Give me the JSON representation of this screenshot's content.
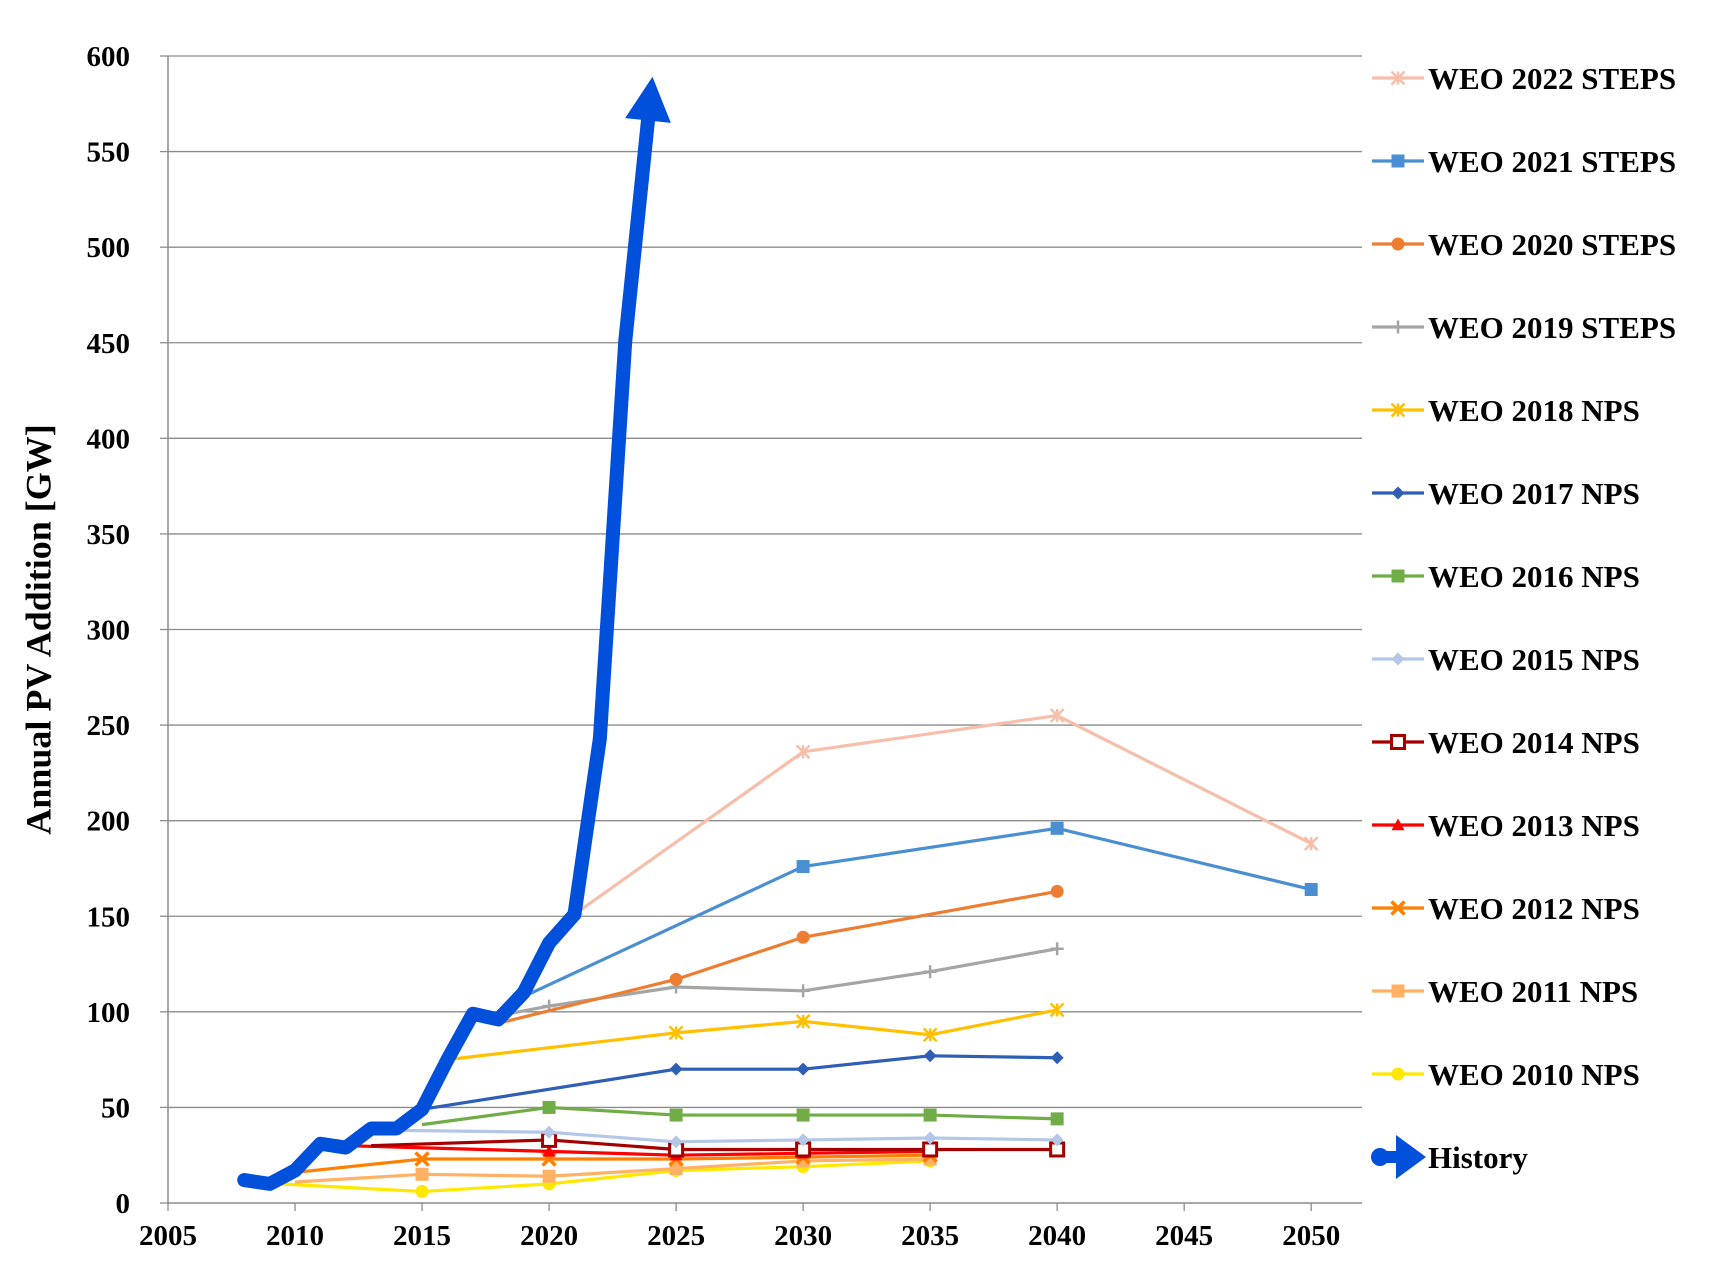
{
  "chart_data": {
    "type": "line",
    "ylabel": "Annual PV Addition [GW]",
    "xlabel": "",
    "xlim": [
      2005,
      2052
    ],
    "ylim": [
      0,
      600
    ],
    "x_ticks": [
      "2005",
      "2010",
      "2015",
      "2020",
      "2025",
      "2030",
      "2035",
      "2040",
      "2045",
      "2050"
    ],
    "y_ticks": [
      "0",
      "50",
      "100",
      "150",
      "200",
      "250",
      "300",
      "350",
      "400",
      "450",
      "500",
      "550",
      "600"
    ],
    "grid": "horizontal",
    "legend_position": "right",
    "history": {
      "name": "History",
      "color": "#0050DC",
      "x": [
        2008,
        2009,
        2010,
        2011,
        2012,
        2013,
        2014,
        2015,
        2016,
        2017,
        2018,
        2019,
        2020,
        2021,
        2022,
        2023,
        2024
      ],
      "y": [
        12,
        10,
        17,
        31,
        29,
        39,
        39,
        49,
        75,
        99,
        96,
        110,
        136,
        151,
        243,
        451,
        580
      ]
    },
    "series": [
      {
        "name": "WEO 2022 STEPS",
        "color": "#F7BFAA",
        "marker": "asterisk",
        "x": [
          2021,
          2030,
          2040,
          2050
        ],
        "y": [
          151,
          236,
          255,
          188
        ]
      },
      {
        "name": "WEO 2021 STEPS",
        "color": "#4A8FD2",
        "marker": "square",
        "x": [
          2019,
          2030,
          2040,
          2050
        ],
        "y": [
          108,
          176,
          196,
          164
        ]
      },
      {
        "name": "WEO 2020 STEPS",
        "color": "#ED7D31",
        "marker": "circle",
        "x": [
          2018,
          2025,
          2030,
          2040
        ],
        "y": [
          94,
          117,
          139,
          163
        ]
      },
      {
        "name": "WEO 2019 STEPS",
        "color": "#A5A5A5",
        "marker": "plus",
        "x": [
          2018,
          2020,
          2025,
          2030,
          2035,
          2040
        ],
        "y": [
          98,
          103,
          113,
          111,
          121,
          133
        ]
      },
      {
        "name": "WEO 2018 NPS",
        "color": "#FFC000",
        "marker": "asterisk",
        "x": [
          2016,
          2025,
          2030,
          2035,
          2040
        ],
        "y": [
          75,
          89,
          95,
          88,
          101
        ]
      },
      {
        "name": "WEO 2017 NPS",
        "color": "#2F5EB5",
        "marker": "diamond",
        "x": [
          2015,
          2025,
          2030,
          2035,
          2040
        ],
        "y": [
          49,
          70,
          70,
          77,
          76
        ]
      },
      {
        "name": "WEO 2016 NPS",
        "color": "#70AD47",
        "marker": "square",
        "x": [
          2015,
          2020,
          2025,
          2030,
          2035,
          2040
        ],
        "y": [
          41,
          50,
          46,
          46,
          46,
          44
        ]
      },
      {
        "name": "WEO 2015 NPS",
        "color": "#B4C7E7",
        "marker": "diamond",
        "x": [
          2014,
          2020,
          2025,
          2030,
          2035,
          2040
        ],
        "y": [
          38,
          37,
          32,
          33,
          34,
          33
        ]
      },
      {
        "name": "WEO 2014 NPS",
        "color": "#A50000",
        "marker": "open-square",
        "x": [
          2013,
          2020,
          2025,
          2030,
          2035,
          2040
        ],
        "y": [
          30,
          33,
          28,
          28,
          28,
          28
        ]
      },
      {
        "name": "WEO 2013 NPS",
        "color": "#FF0000",
        "marker": "triangle",
        "x": [
          2012,
          2020,
          2025,
          2030,
          2035
        ],
        "y": [
          30,
          27,
          25,
          26,
          27
        ]
      },
      {
        "name": "WEO 2012 NPS",
        "color": "#FF7F00",
        "marker": "x",
        "x": [
          2010,
          2015,
          2020,
          2025,
          2030,
          2035
        ],
        "y": [
          16,
          23,
          23,
          23,
          24,
          25
        ]
      },
      {
        "name": "WEO 2011 NPS",
        "color": "#FFB266",
        "marker": "square",
        "x": [
          2010,
          2015,
          2020,
          2025,
          2030,
          2035
        ],
        "y": [
          11,
          15,
          14,
          18,
          22,
          23
        ]
      },
      {
        "name": "WEO 2010 NPS",
        "color": "#FFE800",
        "marker": "circle",
        "x": [
          2008,
          2015,
          2020,
          2025,
          2030,
          2035
        ],
        "y": [
          11,
          6,
          10,
          17,
          19,
          22
        ]
      }
    ]
  }
}
